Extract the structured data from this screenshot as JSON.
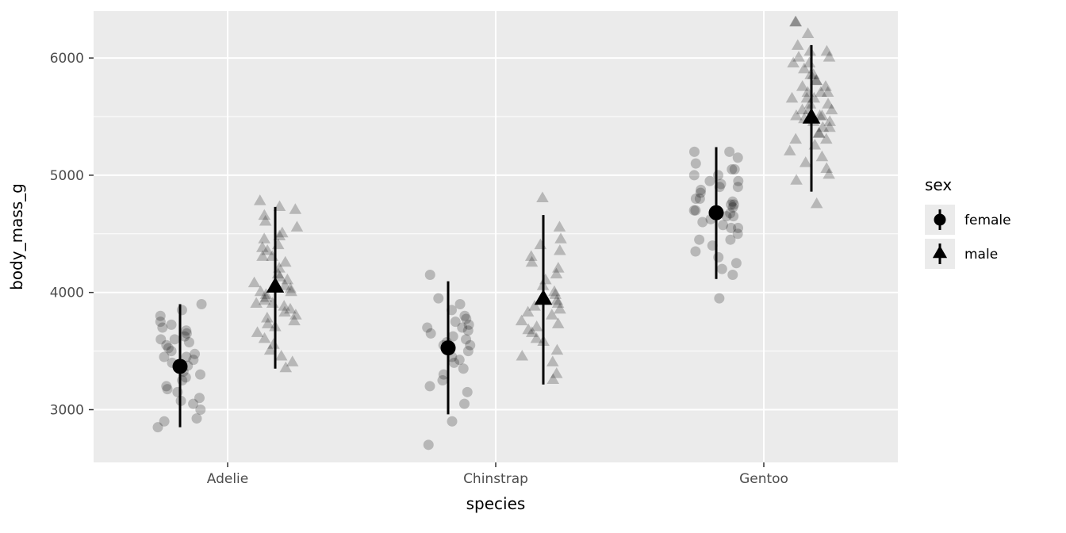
{
  "figure": {
    "background": "#ffffff"
  },
  "chart_data": {
    "type": "scatter",
    "subtype": "jitter-with-pointrange",
    "title": "",
    "xlabel": "species",
    "ylabel": "body_mass_g",
    "categories": [
      "Adelie",
      "Chinstrap",
      "Gentoo"
    ],
    "y_ticks": [
      3000,
      4000,
      5000,
      6000
    ],
    "y_minor": [
      3500,
      4500,
      5500
    ],
    "ylim": [
      2550,
      6400
    ],
    "grid": true,
    "panel_bg": "#ebebeb",
    "grid_color": "#ffffff",
    "tick_label_color": "#4d4d4d",
    "title_color": "#000000",
    "point_color": "#000000",
    "point_opacity": 0.22,
    "legend": {
      "title": "sex",
      "position": "right",
      "key_bg": "#ebebeb",
      "entries": [
        {
          "label": "female",
          "marker": "circle"
        },
        {
          "label": "male",
          "marker": "triangle"
        }
      ]
    },
    "groups": [
      {
        "species": "Adelie",
        "sex": "female",
        "marker": "circle",
        "mean": 3369,
        "lower": 2850,
        "upper": 3900,
        "points": [
          2850,
          2900,
          2925,
          3000,
          3050,
          3075,
          3100,
          3150,
          3175,
          3200,
          3250,
          3275,
          3300,
          3325,
          3350,
          3375,
          3400,
          3425,
          3450,
          3450,
          3475,
          3500,
          3525,
          3550,
          3575,
          3600,
          3600,
          3625,
          3650,
          3675,
          3700,
          3725,
          3750,
          3800,
          3850,
          3900
        ]
      },
      {
        "species": "Adelie",
        "sex": "male",
        "marker": "triangle",
        "mean": 4043,
        "lower": 3350,
        "upper": 4730,
        "points": [
          3350,
          3400,
          3450,
          3500,
          3550,
          3600,
          3650,
          3700,
          3725,
          3750,
          3775,
          3800,
          3825,
          3850,
          3875,
          3900,
          3900,
          3925,
          3950,
          3975,
          4000,
          4000,
          4025,
          4050,
          4075,
          4100,
          4125,
          4150,
          4200,
          4250,
          4300,
          4300,
          4350,
          4375,
          4400,
          4450,
          4475,
          4500,
          4550,
          4600,
          4650,
          4700,
          4725,
          4775
        ]
      },
      {
        "species": "Chinstrap",
        "sex": "female",
        "marker": "circle",
        "mean": 3527,
        "lower": 2960,
        "upper": 4095,
        "points": [
          2700,
          2900,
          3050,
          3150,
          3200,
          3250,
          3300,
          3350,
          3400,
          3425,
          3450,
          3500,
          3525,
          3550,
          3550,
          3575,
          3600,
          3625,
          3650,
          3675,
          3700,
          3700,
          3725,
          3750,
          3775,
          3800,
          3850,
          3900,
          3950,
          4150
        ]
      },
      {
        "species": "Chinstrap",
        "sex": "male",
        "marker": "triangle",
        "mean": 3939,
        "lower": 3215,
        "upper": 4660,
        "points": [
          3250,
          3300,
          3400,
          3450,
          3500,
          3575,
          3600,
          3650,
          3675,
          3700,
          3725,
          3750,
          3800,
          3825,
          3850,
          3875,
          3900,
          3925,
          3950,
          3975,
          4000,
          4050,
          4100,
          4150,
          4200,
          4250,
          4300,
          4350,
          4400,
          4450,
          4550,
          4800
        ]
      },
      {
        "species": "Gentoo",
        "sex": "female",
        "marker": "circle",
        "mean": 4680,
        "lower": 4115,
        "upper": 5240,
        "points": [
          3950,
          4150,
          4200,
          4250,
          4300,
          4350,
          4400,
          4450,
          4450,
          4500,
          4550,
          4550,
          4575,
          4600,
          4625,
          4650,
          4650,
          4675,
          4700,
          4700,
          4725,
          4750,
          4750,
          4775,
          4800,
          4800,
          4850,
          4875,
          4900,
          4900,
          4925,
          4950,
          4950,
          5000,
          5000,
          5050,
          5050,
          5100,
          5150,
          5200,
          5200
        ]
      },
      {
        "species": "Gentoo",
        "sex": "male",
        "marker": "triangle",
        "mean": 5485,
        "lower": 4860,
        "upper": 6110,
        "points": [
          4750,
          4950,
          5000,
          5050,
          5100,
          5150,
          5200,
          5250,
          5300,
          5300,
          5350,
          5350,
          5400,
          5400,
          5450,
          5450,
          5475,
          5500,
          5500,
          5500,
          5550,
          5550,
          5550,
          5600,
          5600,
          5650,
          5650,
          5650,
          5700,
          5700,
          5700,
          5750,
          5750,
          5800,
          5800,
          5850,
          5850,
          5900,
          5950,
          5950,
          6000,
          6000,
          6050,
          6050,
          6100,
          6200,
          6300,
          6300
        ]
      }
    ]
  }
}
